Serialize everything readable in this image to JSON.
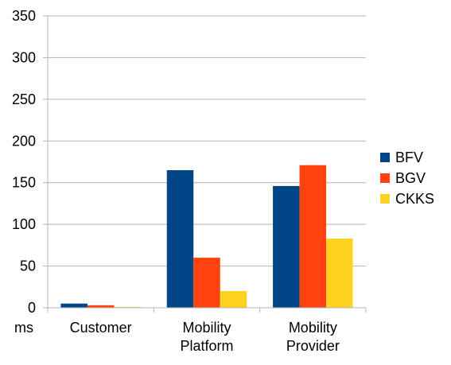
{
  "chart_data": {
    "type": "bar",
    "categories": [
      [
        "Customer"
      ],
      [
        "Mobility",
        "Platform"
      ],
      [
        "Mobility",
        "Provider"
      ]
    ],
    "series": [
      {
        "name": "BFV",
        "color": "#004586",
        "values": [
          5,
          165,
          146
        ]
      },
      {
        "name": "BGV",
        "color": "#ff420e",
        "values": [
          3,
          60,
          171
        ]
      },
      {
        "name": "CKKS",
        "color": "#ffd320",
        "values": [
          1,
          20,
          83
        ]
      }
    ],
    "ylim": [
      0,
      350
    ],
    "yticks": [
      0,
      50,
      100,
      150,
      200,
      250,
      300,
      350
    ],
    "y_unit_label": "ms",
    "grid": true,
    "legend_position": "right"
  }
}
